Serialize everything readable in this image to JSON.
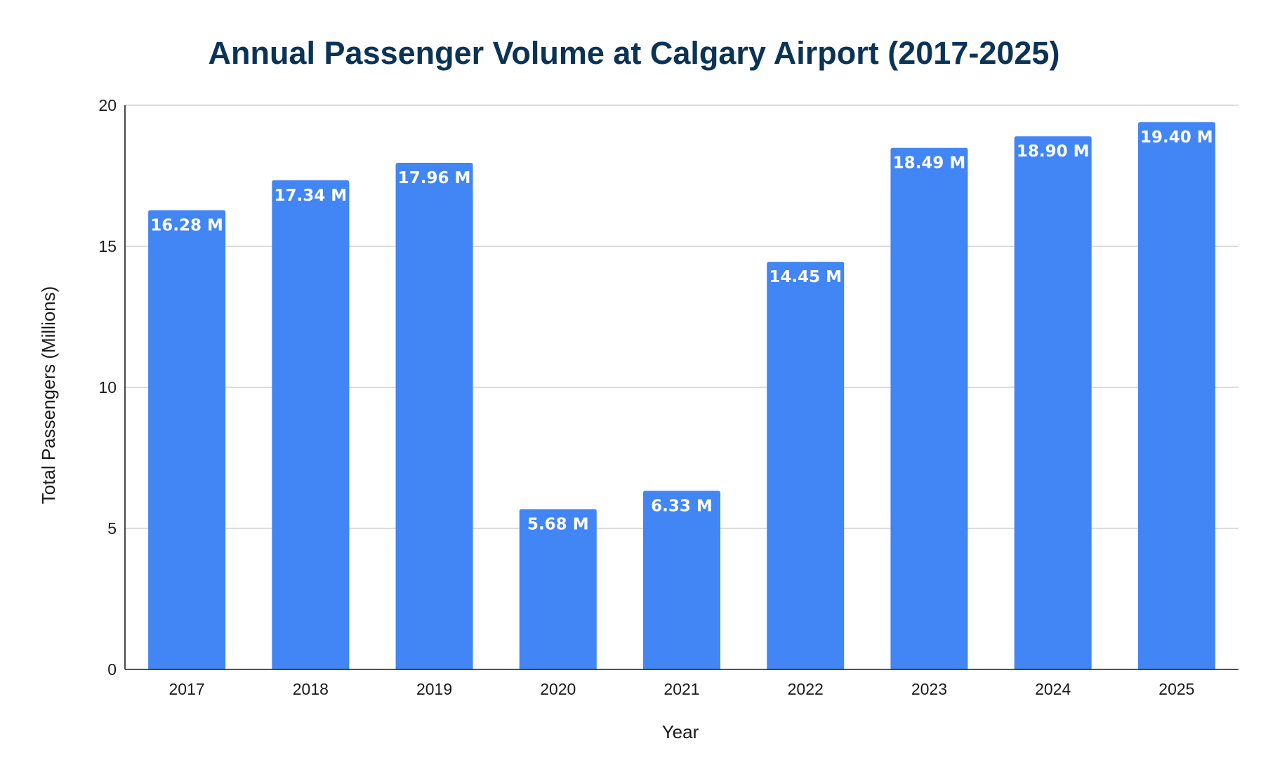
{
  "chart_data": {
    "type": "bar",
    "title": "Annual Passenger Volume at Calgary Airport (2017-2025)",
    "xlabel": "Year",
    "ylabel": "Total Passengers (Millions)",
    "categories": [
      "2017",
      "2018",
      "2019",
      "2020",
      "2021",
      "2022",
      "2023",
      "2024",
      "2025"
    ],
    "values": [
      16.28,
      17.34,
      17.96,
      5.68,
      6.33,
      14.45,
      18.49,
      18.9,
      19.4
    ],
    "data_labels": [
      "16.28 M",
      "17.34 M",
      "17.96 M",
      "5.68 M",
      "6.33 M",
      "14.45 M",
      "18.49 M",
      "18.90 M",
      "19.40 M"
    ],
    "ylim": [
      0,
      20
    ],
    "yticks": [
      "0",
      "5",
      "10",
      "15",
      "20"
    ],
    "ytick_values": [
      0,
      5,
      10,
      15,
      20
    ],
    "grid": true,
    "legend": "none",
    "colors": {
      "bar": "#4285f4",
      "title": "#0b3356",
      "grid": "#c8c8c8",
      "axis": "#1a1a1a",
      "data_label": "#ffffff"
    }
  }
}
